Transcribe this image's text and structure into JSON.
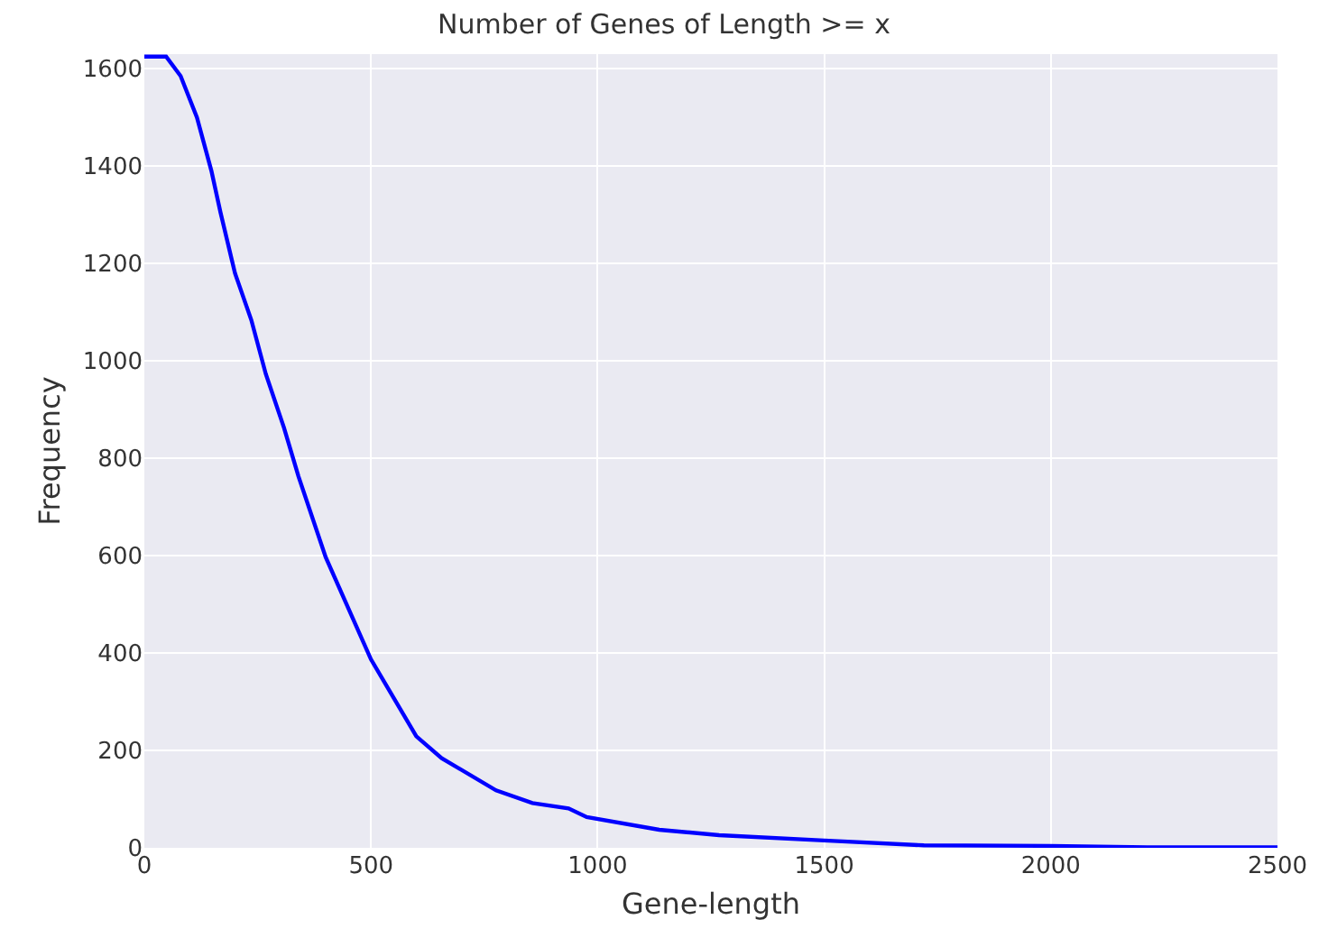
{
  "chart_data": {
    "type": "line",
    "title": "Number of Genes of Length >= x",
    "xlabel": "Gene-length",
    "ylabel": "Frequency",
    "x": [
      0,
      48,
      80,
      116,
      148,
      168,
      200,
      236,
      268,
      308,
      340,
      400,
      500,
      600,
      656,
      776,
      856,
      936,
      976,
      1136,
      1268,
      1500,
      1720,
      2000,
      2228,
      2500
    ],
    "series": [
      {
        "color": "#0000ff",
        "values": [
          1625,
          1625,
          1585,
          1500,
          1390,
          1305,
          1180,
          1084,
          973,
          863,
          763,
          597,
          387,
          229,
          184,
          118,
          92,
          81,
          63,
          37,
          26,
          15,
          5,
          4,
          1,
          1
        ]
      }
    ],
    "xlim": [
      0,
      2500
    ],
    "ylim": [
      0,
      1630
    ],
    "xticks": [
      0,
      500,
      1000,
      1500,
      2000,
      2500
    ],
    "yticks": [
      0,
      200,
      400,
      600,
      800,
      1000,
      1200,
      1400,
      1600
    ],
    "grid": true,
    "legend": false,
    "marker": "none",
    "line_style": "solid"
  }
}
